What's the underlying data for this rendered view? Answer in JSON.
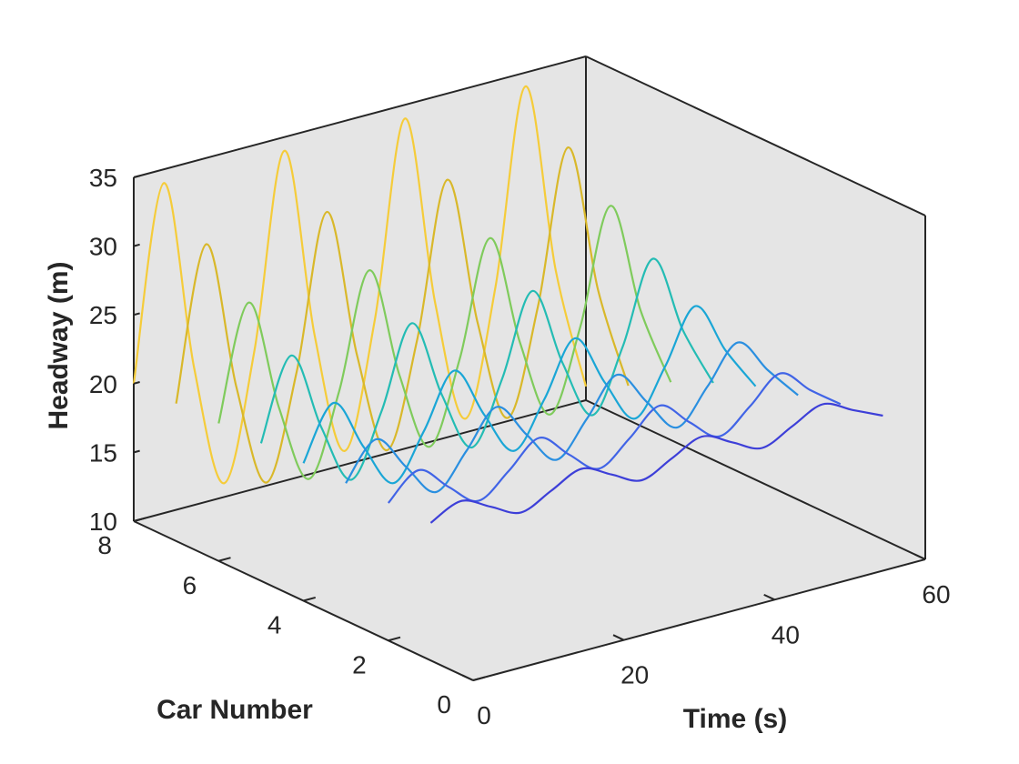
{
  "chart_data": {
    "type": "line",
    "subtype": "3d-waterfall",
    "title": "",
    "xlabel": "Time (s)",
    "ylabel": "Car Number",
    "zlabel": "Headway (m)",
    "xlim": [
      0,
      60
    ],
    "ylim": [
      0,
      8
    ],
    "zlim": [
      10,
      35
    ],
    "xticks": [
      0,
      20,
      40,
      60
    ],
    "yticks": [
      0,
      2,
      4,
      6,
      8
    ],
    "zticks": [
      10,
      15,
      20,
      25,
      30,
      35
    ],
    "grid": false,
    "legend": "none",
    "pane_color": "#e5e5e5",
    "axis_color": "#262626",
    "series": [
      {
        "car": 1,
        "t": [
          0,
          4,
          8,
          12,
          16,
          20,
          24,
          28,
          32,
          36,
          40,
          44,
          48,
          52,
          56,
          60
        ],
        "headway": [
          20.0,
          21.0,
          20.0,
          19.0,
          20.0,
          21.0,
          20.0,
          19.0,
          20.0,
          21.0,
          20.0,
          19.0,
          20.0,
          21.0,
          20.0,
          19.0
        ],
        "color": "#3d3fd8"
      },
      {
        "car": 2,
        "t": [
          0,
          4,
          8,
          12,
          16,
          20,
          24,
          28,
          32,
          36,
          40,
          44,
          48,
          52,
          56,
          60
        ],
        "headway": [
          20.0,
          21.8,
          20.0,
          18.4,
          20.0,
          21.8,
          20.0,
          18.4,
          20.0,
          21.8,
          20.0,
          18.4,
          20.0,
          21.8,
          20.0,
          18.4
        ],
        "color": "#4164e6"
      },
      {
        "car": 3,
        "t": [
          0,
          4,
          8,
          12,
          16,
          20,
          24,
          28,
          32,
          36,
          40,
          44,
          48,
          52,
          56,
          60
        ],
        "headway": [
          20.0,
          22.6,
          20.0,
          17.6,
          20.0,
          22.6,
          20.0,
          17.6,
          20.0,
          22.6,
          20.0,
          17.6,
          20.0,
          22.6,
          20.0,
          17.6
        ],
        "color": "#2a8fe0"
      },
      {
        "car": 4,
        "t": [
          0,
          4,
          8,
          12,
          16,
          20,
          24,
          28,
          32,
          36,
          40,
          44,
          48,
          52,
          56,
          60
        ],
        "headway": [
          20.0,
          23.8,
          20.0,
          16.8,
          20.0,
          23.8,
          20.0,
          16.8,
          20.0,
          23.8,
          20.0,
          16.8,
          20.0,
          23.8,
          20.0,
          16.8
        ],
        "color": "#1aa6d6"
      },
      {
        "car": 5,
        "t": [
          0,
          4,
          8,
          12,
          16,
          20,
          24,
          28,
          32,
          36,
          40,
          44,
          48,
          52,
          56,
          60
        ],
        "headway": [
          20.0,
          25.8,
          20.0,
          15.6,
          20.0,
          25.8,
          20.0,
          15.6,
          20.0,
          25.8,
          20.0,
          15.6,
          20.0,
          25.8,
          20.0,
          15.6
        ],
        "color": "#24bcb4"
      },
      {
        "car": 6,
        "t": [
          0,
          4,
          8,
          12,
          16,
          20,
          24,
          28,
          32,
          36,
          40,
          44,
          48,
          52,
          56,
          60
        ],
        "headway": [
          20.0,
          28.2,
          20.0,
          14.2,
          20.0,
          28.2,
          20.0,
          14.2,
          20.0,
          28.2,
          20.0,
          14.2,
          20.0,
          28.2,
          20.0,
          14.2
        ],
        "color": "#7fcb5c"
      },
      {
        "car": 7,
        "t": [
          0,
          4,
          8,
          12,
          16,
          20,
          24,
          28,
          32,
          36,
          40,
          44,
          48,
          52,
          56,
          60
        ],
        "headway": [
          20.0,
          31.0,
          20.0,
          12.5,
          20.0,
          31.0,
          20.0,
          12.5,
          20.0,
          31.0,
          20.0,
          12.5,
          20.0,
          31.0,
          20.0,
          12.5
        ],
        "color": "#d9b82a"
      },
      {
        "car": 8,
        "t": [
          0,
          4,
          8,
          12,
          16,
          20,
          24,
          28,
          32,
          36,
          40,
          44,
          48,
          52,
          56,
          60
        ],
        "headway": [
          20.0,
          34.0,
          20.0,
          11.0,
          20.0,
          34.0,
          20.0,
          11.0,
          20.0,
          34.0,
          20.0,
          11.0,
          20.0,
          34.0,
          20.0,
          11.0
        ],
        "color": "#f5cc3a"
      }
    ]
  }
}
